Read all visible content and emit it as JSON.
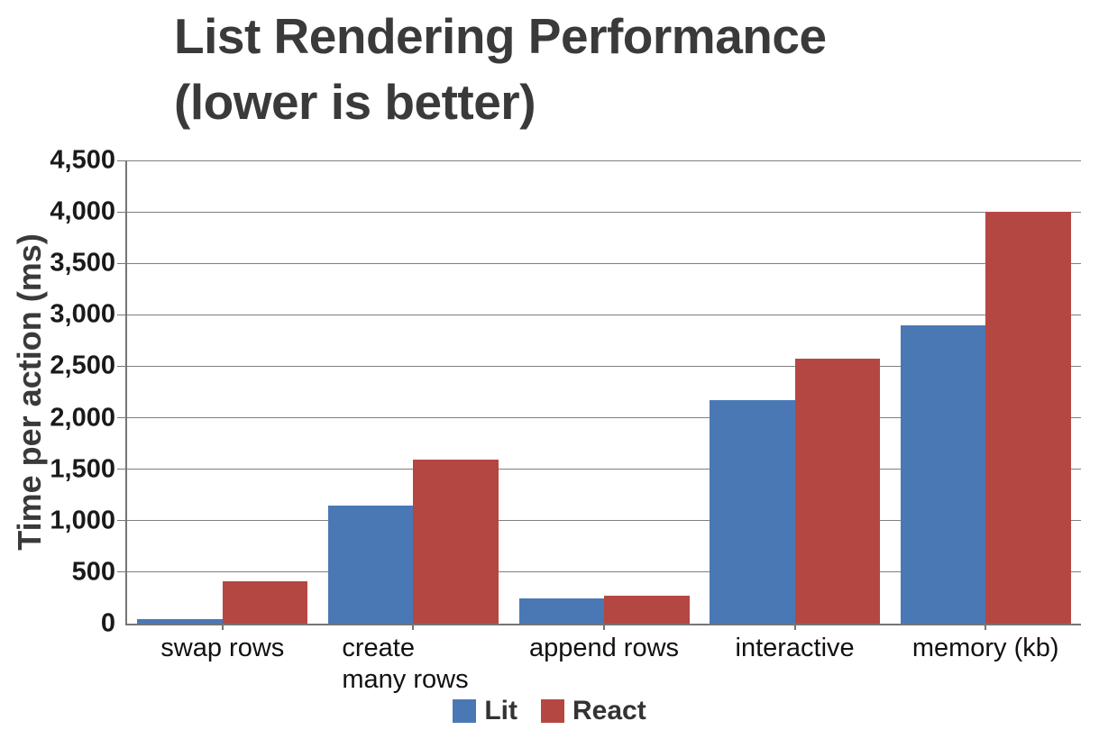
{
  "chart_data": {
    "type": "bar",
    "title": "List Rendering Performance (lower is better)",
    "title_lines": [
      "List Rendering Performance",
      "(lower is better)"
    ],
    "ylabel": "Time per action (ms)",
    "xlabel": "",
    "categories": [
      "swap rows",
      "create many rows",
      "append rows",
      "interactive",
      "memory (kb)"
    ],
    "series": [
      {
        "name": "Lit",
        "color": "#4a78b5",
        "values": [
          45,
          1150,
          245,
          2175,
          2900
        ]
      },
      {
        "name": "React",
        "color": "#b54743",
        "values": [
          410,
          1590,
          275,
          2575,
          4000
        ]
      }
    ],
    "ylim": [
      0,
      4500
    ],
    "ytick_step": 500,
    "ytick_labels": [
      "0",
      "500",
      "1,000",
      "1,500",
      "2,000",
      "2,500",
      "3,000",
      "3,500",
      "4,000",
      "4,500"
    ],
    "grid": true,
    "legend_position": "bottom"
  },
  "colors": {
    "title": "#3a3a3a",
    "axis": "#757575",
    "grid": "#7f7f7f",
    "tick_label": "#1a1a1a",
    "category_label": "#111111",
    "legend_label": "#333333",
    "background": "#ffffff",
    "lit_blue": "#4a78b5",
    "react_red": "#b54743"
  }
}
